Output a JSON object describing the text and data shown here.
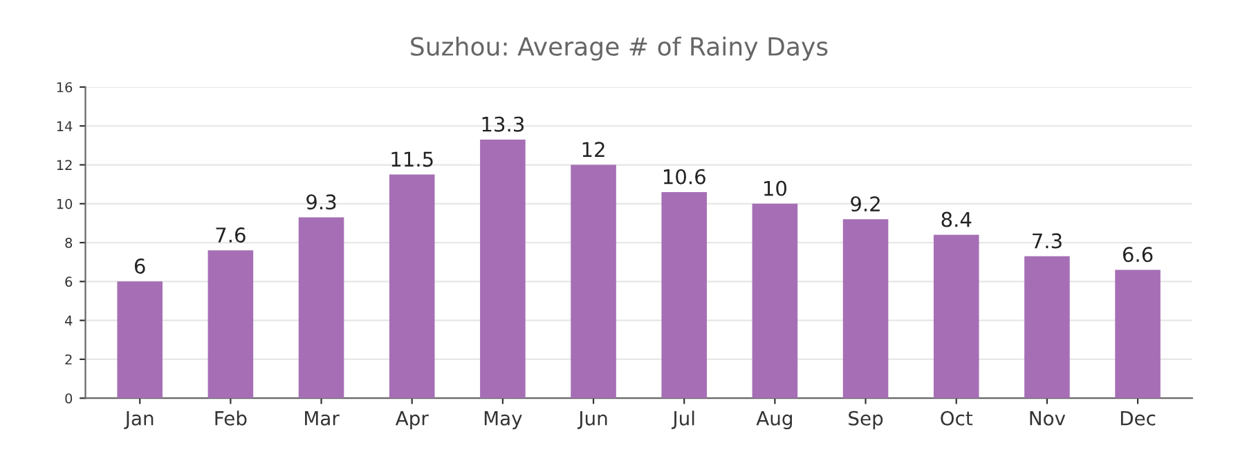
{
  "chart_data": {
    "type": "bar",
    "title": "Suzhou: Average # of Rainy Days",
    "categories": [
      "Jan",
      "Feb",
      "Mar",
      "Apr",
      "May",
      "Jun",
      "Jul",
      "Aug",
      "Sep",
      "Oct",
      "Nov",
      "Dec"
    ],
    "values": [
      6,
      7.6,
      9.3,
      11.5,
      13.3,
      12,
      10.6,
      10,
      9.2,
      8.4,
      7.3,
      6.6
    ],
    "color": "#a66fb5",
    "ylim": [
      0,
      16
    ],
    "yticks": [
      0,
      2,
      4,
      6,
      8,
      10,
      12,
      14,
      16
    ],
    "grid": "y",
    "data_labels": true
  }
}
